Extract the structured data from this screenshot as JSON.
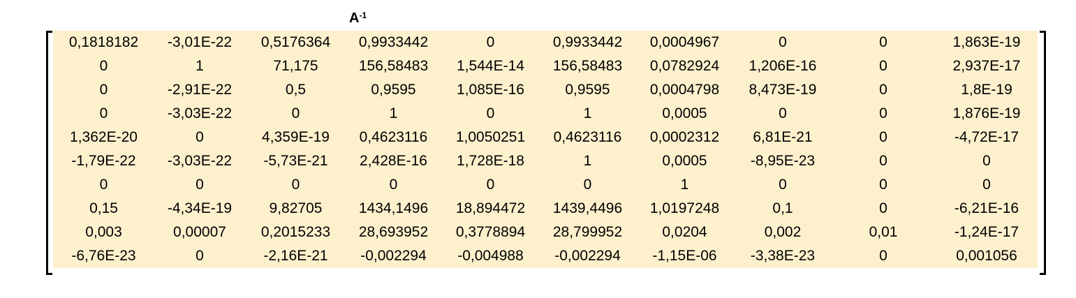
{
  "title": {
    "base": "A",
    "superscript": "-1"
  },
  "colors": {
    "cell_background": "#fdf0cd",
    "bracket": "#000000"
  },
  "matrix": {
    "rows": [
      [
        "0,1818182",
        "-3,01E-22",
        "0,5176364",
        "0,9933442",
        "0",
        "0,9933442",
        "0,0004967",
        "0",
        "0",
        "1,863E-19"
      ],
      [
        "0",
        "1",
        "71,175",
        "156,58483",
        "1,544E-14",
        "156,58483",
        "0,0782924",
        "1,206E-16",
        "0",
        "2,937E-17"
      ],
      [
        "0",
        "-2,91E-22",
        "0,5",
        "0,9595",
        "1,085E-16",
        "0,9595",
        "0,0004798",
        "8,473E-19",
        "0",
        "1,8E-19"
      ],
      [
        "0",
        "-3,03E-22",
        "0",
        "1",
        "0",
        "1",
        "0,0005",
        "0",
        "0",
        "1,876E-19"
      ],
      [
        "1,362E-20",
        "0",
        "4,359E-19",
        "0,4623116",
        "1,0050251",
        "0,4623116",
        "0,0002312",
        "6,81E-21",
        "0",
        "-4,72E-17"
      ],
      [
        "-1,79E-22",
        "-3,03E-22",
        "-5,73E-21",
        "2,428E-16",
        "1,728E-18",
        "1",
        "0,0005",
        "-8,95E-23",
        "0",
        "0"
      ],
      [
        "0",
        "0",
        "0",
        "0",
        "0",
        "0",
        "1",
        "0",
        "0",
        "0"
      ],
      [
        "0,15",
        "-4,34E-19",
        "9,82705",
        "1434,1496",
        "18,894472",
        "1439,4496",
        "1,0197248",
        "0,1",
        "0",
        "-6,21E-16"
      ],
      [
        "0,003",
        "0,00007",
        "0,2015233",
        "28,693952",
        "0,3778894",
        "28,799952",
        "0,0204",
        "0,002",
        "0,01",
        "-1,24E-17"
      ],
      [
        "-6,76E-23",
        "0",
        "-2,16E-21",
        "-0,002294",
        "-0,004988",
        "-0,002294",
        "-1,15E-06",
        "-3,38E-23",
        "0",
        "0,001056"
      ]
    ]
  }
}
